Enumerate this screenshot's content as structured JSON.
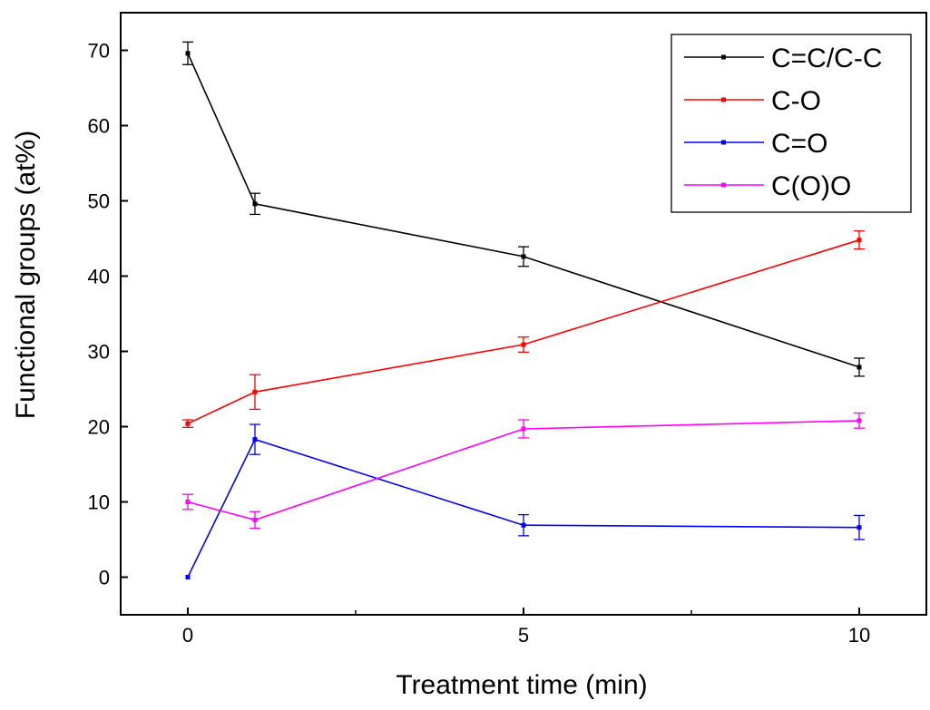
{
  "chart_data": {
    "type": "line",
    "title": "",
    "xlabel": "Treatment time (min)",
    "ylabel": "Functional groups (at%)",
    "xlim": [
      -1,
      11
    ],
    "ylim": [
      -5,
      75
    ],
    "x_ticks": [
      0,
      5,
      10
    ],
    "y_ticks": [
      0,
      10,
      20,
      30,
      40,
      50,
      60,
      70
    ],
    "grid": false,
    "legend_position": "top-right",
    "series": [
      {
        "name": "C=C/C-C",
        "color": "#000000",
        "x": [
          0,
          1,
          5,
          10
        ],
        "y": [
          69.6,
          49.6,
          42.6,
          27.9
        ],
        "error": [
          1.5,
          1.4,
          1.3,
          1.2
        ]
      },
      {
        "name": "C-O",
        "color": "#ff0000",
        "x": [
          0,
          1,
          5,
          10
        ],
        "y": [
          20.4,
          24.6,
          30.9,
          44.8
        ],
        "error": [
          0.5,
          2.3,
          1.0,
          1.2
        ]
      },
      {
        "name": "C=O",
        "color": "#0000ff",
        "x": [
          0,
          1,
          5,
          10
        ],
        "y": [
          0.0,
          18.3,
          6.9,
          6.6
        ],
        "error": [
          0.0,
          2.0,
          1.4,
          1.6
        ]
      },
      {
        "name": "C(O)O",
        "color": "#ff00ff",
        "x": [
          0,
          1,
          5,
          10
        ],
        "y": [
          10.0,
          7.6,
          19.7,
          20.8
        ],
        "error": [
          1.0,
          1.1,
          1.2,
          1.0
        ]
      }
    ]
  }
}
